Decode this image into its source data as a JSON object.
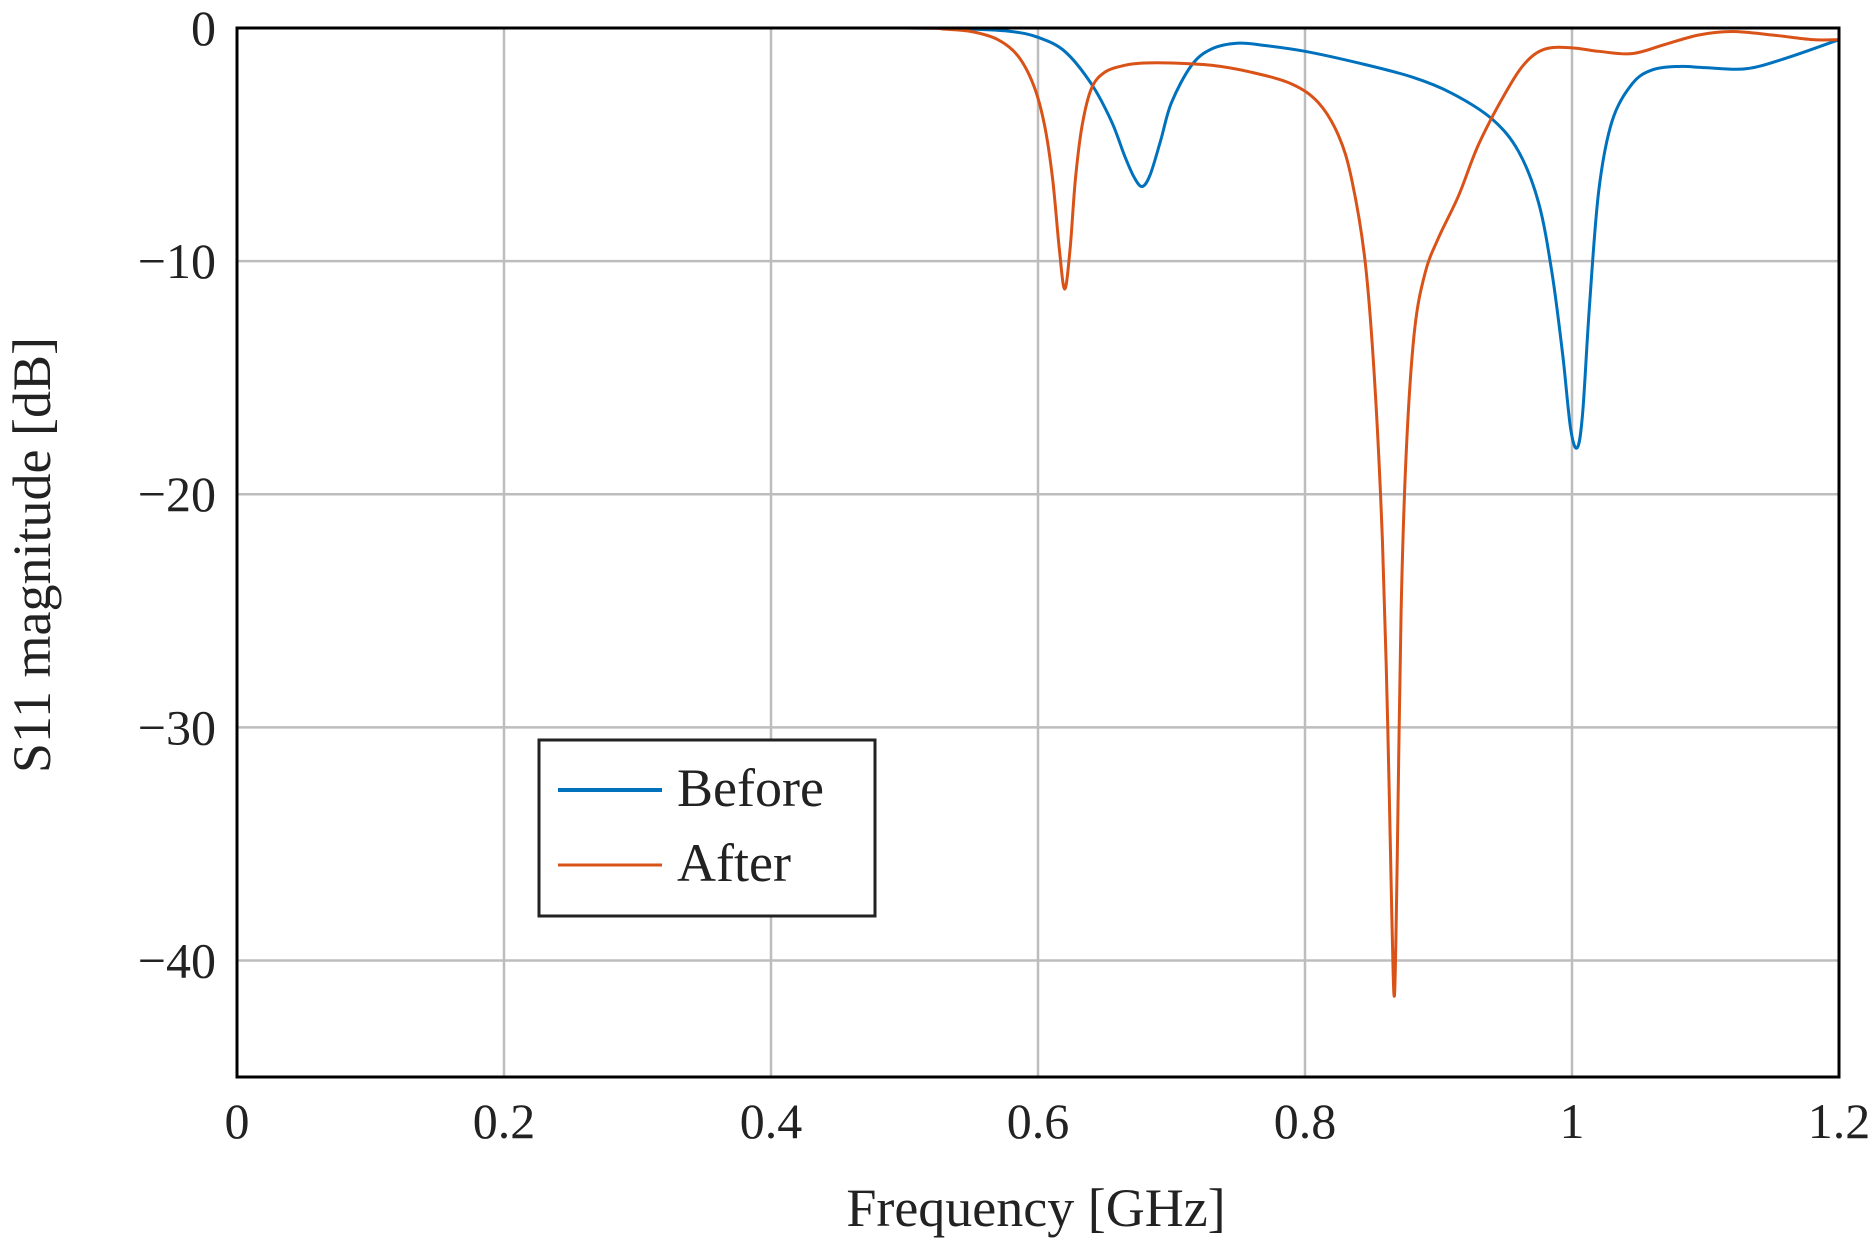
{
  "chart_data": {
    "type": "line",
    "title": "",
    "xlabel": "Frequency [GHz]",
    "ylabel": "S11 magnitude [dB]",
    "xlim": [
      0,
      1.2
    ],
    "ylim": [
      -45,
      0
    ],
    "grid": true,
    "legend_position": "lower-left",
    "xticks": [
      0,
      0.2,
      0.4,
      0.6,
      0.8,
      1.0,
      1.2
    ],
    "xtick_labels": [
      "0",
      "0.2",
      "0.4",
      "0.6",
      "0.8",
      "1",
      "1.2"
    ],
    "yticks": [
      0,
      -10,
      -20,
      -30,
      -40
    ],
    "ytick_labels": [
      "0",
      "−10",
      "−20",
      "−30",
      "−40"
    ],
    "series": [
      {
        "name": "Before",
        "color": "#0072BD",
        "x": [
          0,
          0.3,
          0.5,
          0.55,
          0.58,
          0.6,
          0.62,
          0.64,
          0.655,
          0.665,
          0.672,
          0.678,
          0.684,
          0.692,
          0.7,
          0.715,
          0.73,
          0.75,
          0.77,
          0.8,
          0.84,
          0.88,
          0.91,
          0.94,
          0.96,
          0.975,
          0.985,
          0.993,
          0.999,
          1.004,
          1.008,
          1.013,
          1.02,
          1.03,
          1.045,
          1.06,
          1.08,
          1.1,
          1.13,
          1.16,
          1.2
        ],
        "y": [
          0,
          0,
          0,
          -0.05,
          -0.15,
          -0.4,
          -1.0,
          -2.4,
          -4.0,
          -5.5,
          -6.4,
          -6.8,
          -6.3,
          -4.8,
          -3.2,
          -1.6,
          -0.9,
          -0.65,
          -0.75,
          -1.0,
          -1.5,
          -2.1,
          -2.8,
          -3.9,
          -5.3,
          -7.5,
          -10.5,
          -14,
          -17.2,
          -18.0,
          -16.5,
          -12,
          -7,
          -4,
          -2.4,
          -1.8,
          -1.65,
          -1.7,
          -1.75,
          -1.3,
          -0.5
        ]
      },
      {
        "name": "After",
        "color": "#D95319",
        "x": [
          0,
          0.3,
          0.5,
          0.53,
          0.55,
          0.57,
          0.585,
          0.597,
          0.605,
          0.611,
          0.616,
          0.62,
          0.624,
          0.628,
          0.633,
          0.64,
          0.65,
          0.665,
          0.68,
          0.7,
          0.73,
          0.76,
          0.79,
          0.81,
          0.825,
          0.835,
          0.845,
          0.852,
          0.858,
          0.862,
          0.865,
          0.867,
          0.869,
          0.872,
          0.876,
          0.882,
          0.89,
          0.9,
          0.915,
          0.93,
          0.95,
          0.965,
          0.98,
          1.0,
          1.02,
          1.045,
          1.07,
          1.095,
          1.12,
          1.15,
          1.18,
          1.2
        ],
        "y": [
          0,
          0,
          0,
          -0.05,
          -0.15,
          -0.5,
          -1.2,
          -2.5,
          -4.2,
          -6.5,
          -9.5,
          -11.2,
          -9.5,
          -6.5,
          -4.2,
          -2.6,
          -1.9,
          -1.6,
          -1.5,
          -1.5,
          -1.6,
          -1.9,
          -2.4,
          -3.2,
          -4.6,
          -6.5,
          -10,
          -15,
          -22,
          -30,
          -38,
          -41.5,
          -36,
          -25,
          -18,
          -13,
          -10.5,
          -9,
          -7.2,
          -5,
          -2.8,
          -1.5,
          -0.9,
          -0.85,
          -1.0,
          -1.1,
          -0.7,
          -0.3,
          -0.15,
          -0.3,
          -0.5,
          -0.5
        ]
      }
    ]
  }
}
